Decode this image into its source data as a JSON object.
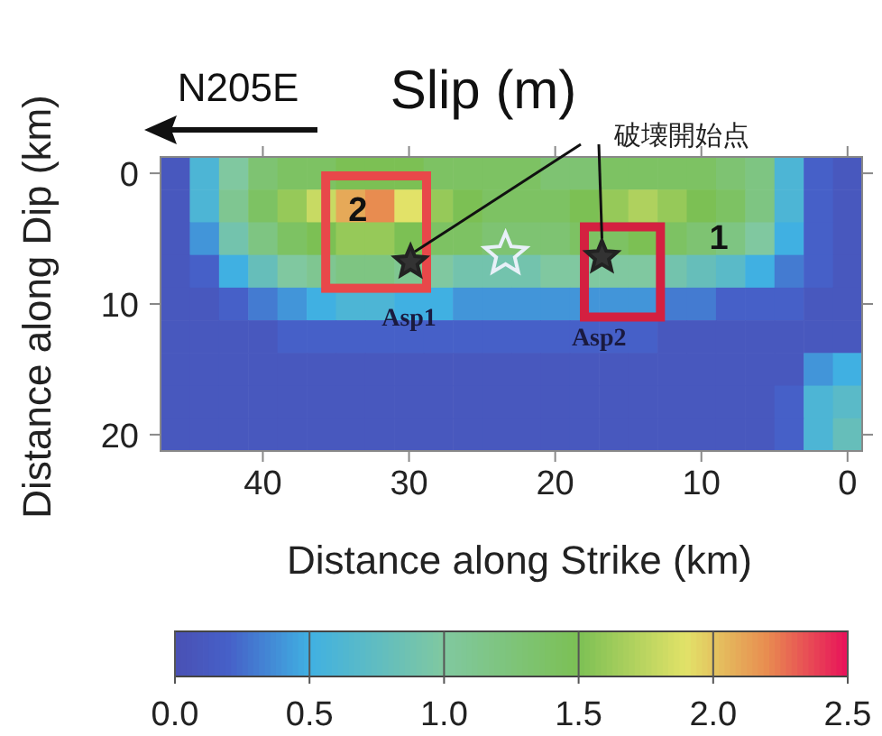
{
  "chart_data": {
    "type": "heatmap",
    "title": "Slip (m)",
    "xlabel": "Distance along Strike (km)",
    "ylabel": "Distance along Dip (km)",
    "categories": [
      null,
      null,
      null,
      "40",
      null,
      null,
      null,
      null,
      "30",
      null,
      null,
      null,
      null,
      "20",
      null,
      null,
      null,
      null,
      "10",
      null,
      null,
      null,
      null,
      "0"
    ],
    "y_categories": [
      "0",
      null,
      null,
      null,
      "10",
      null,
      null,
      null,
      "20"
    ],
    "cells": [
      [
        0.1,
        0.6,
        1.0,
        1.3,
        1.4,
        1.4,
        1.5,
        1.5,
        1.5,
        1.4,
        1.4,
        1.4,
        1.4,
        1.3,
        1.3,
        1.4,
        1.4,
        1.4,
        1.4,
        1.3,
        1.2,
        0.6,
        0.2,
        0.1
      ],
      [
        0.1,
        0.6,
        1.1,
        1.4,
        1.6,
        1.8,
        2.1,
        2.2,
        1.9,
        1.6,
        1.5,
        1.4,
        1.4,
        1.4,
        1.5,
        1.6,
        1.7,
        1.6,
        1.5,
        1.4,
        1.2,
        0.6,
        0.2,
        0.1
      ],
      [
        0.1,
        0.4,
        0.9,
        1.2,
        1.4,
        1.5,
        1.6,
        1.6,
        1.5,
        1.4,
        1.4,
        1.3,
        1.3,
        1.3,
        1.4,
        1.4,
        1.5,
        1.4,
        1.3,
        1.2,
        1.0,
        0.5,
        0.2,
        0.1
      ],
      [
        0.1,
        0.2,
        0.5,
        0.8,
        1.0,
        1.1,
        1.2,
        1.2,
        1.1,
        1.0,
        0.9,
        0.9,
        0.9,
        1.0,
        1.0,
        1.0,
        1.0,
        0.9,
        0.8,
        0.7,
        0.5,
        0.3,
        0.2,
        0.1
      ],
      [
        0.1,
        0.1,
        0.2,
        0.3,
        0.4,
        0.5,
        0.6,
        0.6,
        0.5,
        0.5,
        0.4,
        0.4,
        0.4,
        0.4,
        0.4,
        0.4,
        0.4,
        0.3,
        0.3,
        0.2,
        0.2,
        0.2,
        0.1,
        0.1
      ],
      [
        0.1,
        0.1,
        0.1,
        0.1,
        0.2,
        0.2,
        0.2,
        0.2,
        0.2,
        0.2,
        0.2,
        0.2,
        0.2,
        0.2,
        0.2,
        0.2,
        0.2,
        0.1,
        0.1,
        0.1,
        0.1,
        0.1,
        0.1,
        0.1
      ],
      [
        0.1,
        0.1,
        0.1,
        0.1,
        0.1,
        0.1,
        0.1,
        0.1,
        0.1,
        0.1,
        0.1,
        0.1,
        0.1,
        0.1,
        0.1,
        0.1,
        0.1,
        0.1,
        0.1,
        0.1,
        0.1,
        0.1,
        0.4,
        0.5
      ],
      [
        0.1,
        0.1,
        0.1,
        0.1,
        0.1,
        0.1,
        0.1,
        0.1,
        0.1,
        0.1,
        0.1,
        0.1,
        0.1,
        0.1,
        0.1,
        0.1,
        0.1,
        0.1,
        0.1,
        0.1,
        0.1,
        0.2,
        0.6,
        0.7
      ],
      [
        0.1,
        0.1,
        0.1,
        0.1,
        0.1,
        0.1,
        0.1,
        0.1,
        0.1,
        0.1,
        0.1,
        0.1,
        0.1,
        0.1,
        0.1,
        0.1,
        0.1,
        0.1,
        0.1,
        0.1,
        0.1,
        0.2,
        0.6,
        0.8
      ]
    ],
    "clim": [
      0,
      2.5
    ],
    "cticks": [
      {
        "value": 0,
        "label": "0.0"
      },
      0.5,
      {
        "value": 1,
        "label": "1.0"
      },
      1.5,
      {
        "value": 2,
        "label": "2.0"
      },
      2.5
    ],
    "annotations": [
      "N205E",
      "破壊開始点",
      "Asp1",
      "Asp2",
      "2",
      "1"
    ]
  }
}
